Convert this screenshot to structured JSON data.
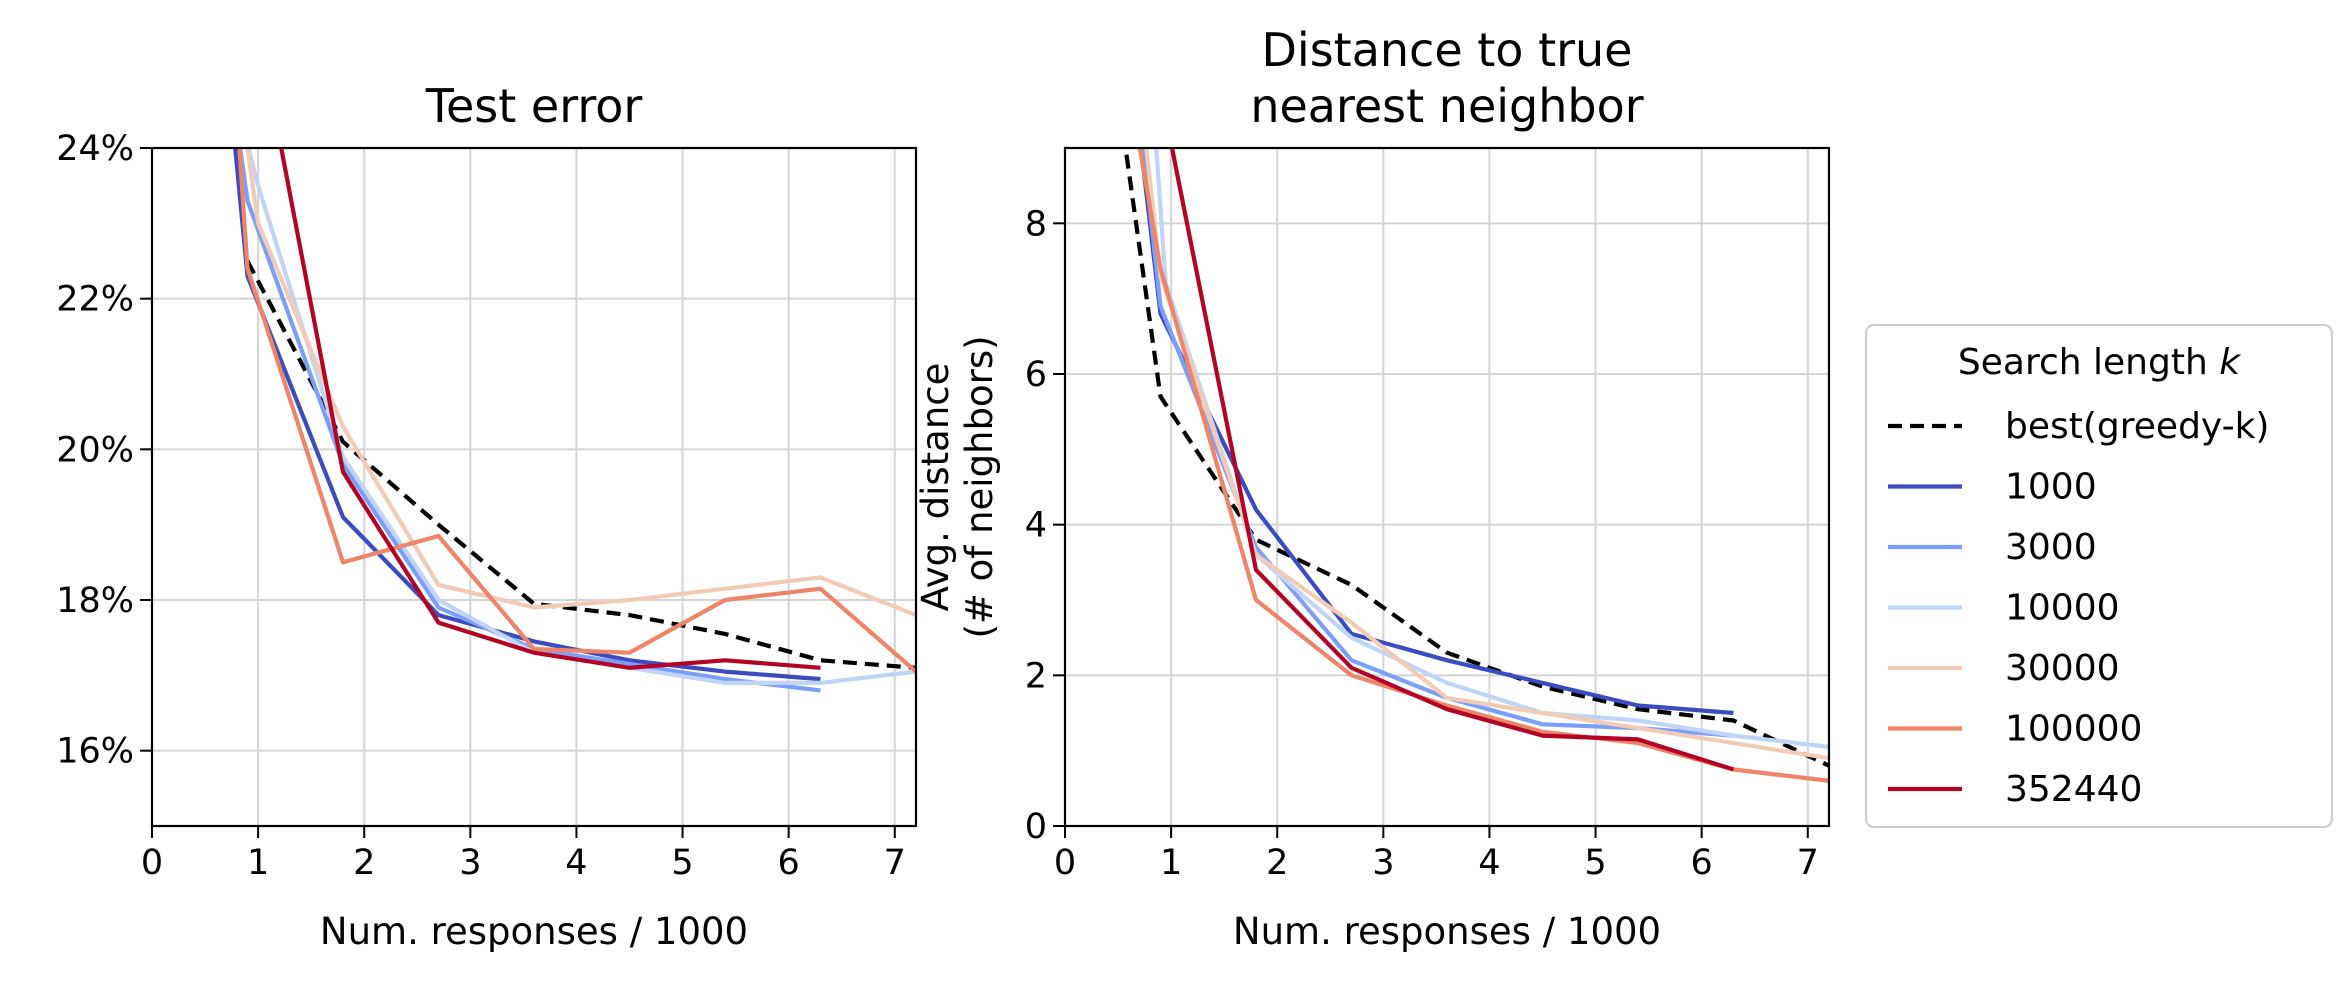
{
  "legend": {
    "title_prefix": "Search length ",
    "title_var": "k"
  },
  "chart_data": [
    {
      "type": "line",
      "title": "Test error",
      "xlabel": "Num. responses / 1000",
      "ylabel": "",
      "xlim": [
        0,
        7.2
      ],
      "ylim": [
        15,
        24
      ],
      "xticks": [
        0,
        1,
        2,
        3,
        4,
        5,
        6,
        7
      ],
      "yticks": [
        16,
        18,
        20,
        22,
        24
      ],
      "ytick_labels": [
        "16%",
        "18%",
        "20%",
        "22%",
        "24%"
      ],
      "grid": true,
      "series": [
        {
          "name": "best(greedy-k)",
          "color": "#000000",
          "dashed": true,
          "x": [
            0.9,
            1.8,
            2.7,
            3.6,
            4.5,
            5.4,
            6.3,
            7.2
          ],
          "y": [
            22.5,
            20.1,
            19.0,
            17.95,
            17.8,
            17.55,
            17.2,
            17.1
          ]
        },
        {
          "name": "1000",
          "color": "#3b4cc0",
          "dashed": false,
          "x": [
            0.75,
            0.9,
            1.8,
            2.7,
            3.6,
            4.5,
            5.4,
            6.3
          ],
          "y": [
            24.5,
            22.3,
            19.1,
            17.8,
            17.45,
            17.2,
            17.05,
            16.95
          ]
        },
        {
          "name": "3000",
          "color": "#7b9ff9",
          "dashed": false,
          "x": [
            0.78,
            0.9,
            1.8,
            2.7,
            3.6,
            4.5,
            5.4,
            6.3
          ],
          "y": [
            24.5,
            23.3,
            19.8,
            17.9,
            17.35,
            17.15,
            16.95,
            16.8
          ]
        },
        {
          "name": "10000",
          "color": "#c0d4f5",
          "dashed": false,
          "x": [
            0.82,
            1.0,
            1.8,
            2.7,
            3.6,
            4.5,
            5.4,
            6.3,
            7.2
          ],
          "y": [
            24.5,
            23.5,
            19.9,
            18.0,
            17.3,
            17.1,
            16.9,
            16.9,
            17.05
          ]
        },
        {
          "name": "30000",
          "color": "#f2cbb7",
          "dashed": false,
          "x": [
            0.85,
            1.0,
            1.8,
            2.7,
            3.6,
            4.5,
            5.4,
            6.3,
            7.2
          ],
          "y": [
            24.5,
            23.0,
            20.3,
            18.2,
            17.9,
            18.0,
            18.15,
            18.3,
            17.8
          ]
        },
        {
          "name": "100000",
          "color": "#ee8468",
          "dashed": false,
          "x": [
            0.8,
            0.9,
            1.8,
            2.7,
            3.6,
            4.5,
            5.4,
            6.3,
            7.2
          ],
          "y": [
            24.5,
            22.4,
            18.5,
            18.85,
            17.35,
            17.3,
            18.0,
            18.15,
            17.05
          ]
        },
        {
          "name": "352440",
          "color": "#b40426",
          "dashed": false,
          "x": [
            1.15,
            1.8,
            2.7,
            3.6,
            4.5,
            5.4,
            6.3
          ],
          "y": [
            24.5,
            19.7,
            17.7,
            17.3,
            17.1,
            17.2,
            17.1
          ]
        }
      ]
    },
    {
      "type": "line",
      "title": "Distance to true nearest neighbor",
      "title_lines": [
        "Distance to true",
        "nearest neighbor"
      ],
      "xlabel": "Num. responses / 1000",
      "ylabel": "Avg. distance (# of neighbors)",
      "ylabel_lines": [
        "Avg. distance",
        "(# of neighbors)"
      ],
      "xlim": [
        0,
        7.2
      ],
      "ylim": [
        0,
        9
      ],
      "xticks": [
        0,
        1,
        2,
        3,
        4,
        5,
        6,
        7
      ],
      "yticks": [
        0,
        2,
        4,
        6,
        8
      ],
      "ytick_labels": [
        "0",
        "2",
        "4",
        "6",
        "8"
      ],
      "grid": true,
      "legend_position": "right",
      "series": [
        {
          "name": "best(greedy-k)",
          "color": "#000000",
          "dashed": true,
          "x": [
            0.55,
            0.9,
            1.8,
            2.7,
            3.6,
            4.5,
            5.4,
            6.3,
            7.2
          ],
          "y": [
            9.2,
            5.7,
            3.8,
            3.2,
            2.3,
            1.85,
            1.55,
            1.4,
            0.8
          ]
        },
        {
          "name": "1000",
          "color": "#3b4cc0",
          "dashed": false,
          "x": [
            0.7,
            0.9,
            1.8,
            2.7,
            3.6,
            4.5,
            5.4,
            6.3
          ],
          "y": [
            9.2,
            6.8,
            4.2,
            2.55,
            2.2,
            1.9,
            1.6,
            1.5
          ]
        },
        {
          "name": "3000",
          "color": "#7b9ff9",
          "dashed": false,
          "x": [
            0.72,
            0.9,
            1.8,
            2.7,
            3.6,
            4.5,
            5.4,
            6.3
          ],
          "y": [
            9.2,
            6.9,
            3.7,
            2.2,
            1.7,
            1.35,
            1.3,
            1.2
          ]
        },
        {
          "name": "10000",
          "color": "#c0d4f5",
          "dashed": false,
          "x": [
            0.85,
            0.95,
            1.8,
            2.7,
            3.6,
            4.5,
            5.4,
            6.3,
            7.2
          ],
          "y": [
            9.2,
            7.2,
            3.6,
            2.5,
            1.9,
            1.5,
            1.4,
            1.2,
            1.05
          ]
        },
        {
          "name": "30000",
          "color": "#f2cbb7",
          "dashed": false,
          "x": [
            0.75,
            0.9,
            1.8,
            2.7,
            3.6,
            4.5,
            5.4,
            6.3,
            7.2
          ],
          "y": [
            9.2,
            7.3,
            3.6,
            2.7,
            1.7,
            1.5,
            1.3,
            1.1,
            0.9
          ]
        },
        {
          "name": "100000",
          "color": "#ee8468",
          "dashed": false,
          "x": [
            0.68,
            0.9,
            1.8,
            2.7,
            3.6,
            4.5,
            5.4,
            6.3,
            7.2
          ],
          "y": [
            9.2,
            7.4,
            3.0,
            2.0,
            1.6,
            1.25,
            1.1,
            0.75,
            0.6
          ]
        },
        {
          "name": "352440",
          "color": "#b40426",
          "dashed": false,
          "x": [
            0.98,
            1.8,
            2.7,
            3.6,
            4.5,
            5.4,
            6.3
          ],
          "y": [
            9.2,
            3.4,
            2.1,
            1.55,
            1.2,
            1.15,
            0.75
          ]
        }
      ]
    }
  ]
}
